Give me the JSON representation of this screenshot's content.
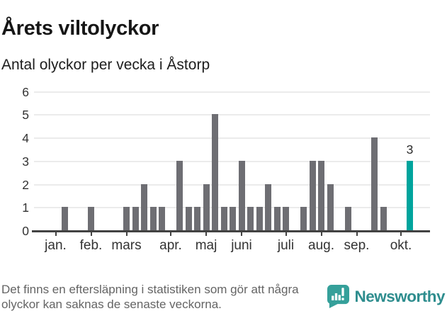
{
  "header": {
    "title": "Årets viltolyckor",
    "subtitle": "Antal olyckor per vecka i Åstorp"
  },
  "chart_data": {
    "type": "bar",
    "title": "Årets viltolyckor",
    "subtitle": "Antal olyckor per vecka i Åstorp",
    "ylabel": "Antal olyckor per vecka",
    "x_unit": "vecka (weekly bars, jan–okt)",
    "ylim": [
      0,
      6
    ],
    "yticks": [
      0,
      1,
      2,
      3,
      4,
      5,
      6
    ],
    "grid": true,
    "weekly_values": [
      0,
      1,
      0,
      0,
      1,
      0,
      0,
      0,
      1,
      1,
      2,
      1,
      1,
      0,
      3,
      1,
      1,
      2,
      5,
      1,
      1,
      3,
      1,
      1,
      2,
      1,
      1,
      0,
      1,
      3,
      3,
      2,
      0,
      1,
      0,
      0,
      4,
      1,
      0,
      0,
      3
    ],
    "month_ticks": [
      {
        "label": "jan.",
        "week_index": 0
      },
      {
        "label": "feb.",
        "week_index": 4
      },
      {
        "label": "mars",
        "week_index": 8
      },
      {
        "label": "apr.",
        "week_index": 13
      },
      {
        "label": "maj",
        "week_index": 17
      },
      {
        "label": "juni",
        "week_index": 21
      },
      {
        "label": "juli",
        "week_index": 26
      },
      {
        "label": "aug.",
        "week_index": 30
      },
      {
        "label": "sep.",
        "week_index": 34
      },
      {
        "label": "okt.",
        "week_index": 39
      }
    ],
    "highlight": {
      "week_index": 40,
      "value": 3,
      "label": "3"
    },
    "colors": {
      "bar": "#6e6e73",
      "highlight": "#00a49d",
      "gridline": "#ebebeb",
      "axis": "#424242",
      "tick_text": "#333333"
    }
  },
  "footer": {
    "note_lines": [
      "Det finns en eftersläpning i statistiken som gör att några",
      "olyckor kan saknas de senaste veckorna."
    ],
    "brand_name": "Newsworthy",
    "brand_color": "#2e8d8e"
  }
}
